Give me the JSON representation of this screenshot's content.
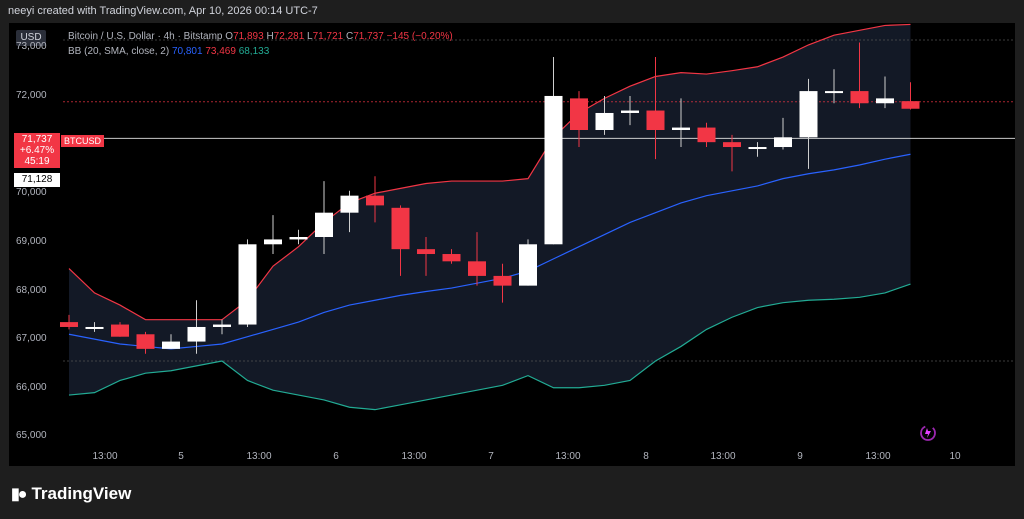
{
  "header": {
    "attribution": "neeyi created with TradingView.com, Apr 10, 2026 00:14 UTC-7"
  },
  "currency_button": "USD",
  "legend": {
    "title": "Bitcoin / U.S. Dollar · 4h · Bitstamp",
    "o_label": "O",
    "o_value": "71,893",
    "h_label": "H",
    "h_value": "72,281",
    "l_label": "L",
    "l_value": "71,721",
    "c_label": "C",
    "c_value": "71,737",
    "change": "−145 (−0.20%)",
    "bb_title": "BB (20, SMA, close, 2)",
    "bb_basis": "70,801",
    "bb_upper": "73,469",
    "bb_lower": "68,133"
  },
  "price_tag": {
    "price": "71,737",
    "change": "+6.47%",
    "countdown": "45:19",
    "symbol": "BTCUSD"
  },
  "crosshair_price": "71,128",
  "brand": "TradingView",
  "colors": {
    "up": "#ffffff",
    "down": "#f23645",
    "upper": "#f23645",
    "basis": "#2962ff",
    "lower": "#22ab94"
  },
  "chart_data": {
    "type": "candlestick",
    "y_ticks": [
      "73,000",
      "72,000",
      "71,000",
      "70,000",
      "69,000",
      "68,000",
      "67,000",
      "66,000",
      "65,000"
    ],
    "x_ticks": [
      "13:00",
      "5",
      "13:00",
      "6",
      "13:00",
      "7",
      "13:00",
      "8",
      "13:00",
      "9",
      "13:00",
      "10"
    ],
    "ylim": [
      64700,
      73500
    ],
    "candles": [
      {
        "o": 67350,
        "h": 67500,
        "l": 67200,
        "c": 67250
      },
      {
        "o": 67250,
        "h": 67350,
        "l": 67150,
        "c": 67250
      },
      {
        "o": 67300,
        "h": 67350,
        "l": 67050,
        "c": 67050
      },
      {
        "o": 67100,
        "h": 67150,
        "l": 66700,
        "c": 66800
      },
      {
        "o": 66800,
        "h": 67100,
        "l": 66800,
        "c": 66950
      },
      {
        "o": 66950,
        "h": 67800,
        "l": 66700,
        "c": 67250
      },
      {
        "o": 67250,
        "h": 67400,
        "l": 67100,
        "c": 67300
      },
      {
        "o": 67300,
        "h": 69050,
        "l": 67250,
        "c": 68950
      },
      {
        "o": 68950,
        "h": 69550,
        "l": 68750,
        "c": 69050
      },
      {
        "o": 69050,
        "h": 69250,
        "l": 68950,
        "c": 69100
      },
      {
        "o": 69100,
        "h": 70250,
        "l": 68750,
        "c": 69600
      },
      {
        "o": 69600,
        "h": 70050,
        "l": 69200,
        "c": 69950
      },
      {
        "o": 69950,
        "h": 70350,
        "l": 69400,
        "c": 69750
      },
      {
        "o": 69700,
        "h": 69750,
        "l": 68300,
        "c": 68850
      },
      {
        "o": 68850,
        "h": 69100,
        "l": 68300,
        "c": 68750
      },
      {
        "o": 68750,
        "h": 68850,
        "l": 68550,
        "c": 68600
      },
      {
        "o": 68600,
        "h": 69200,
        "l": 68100,
        "c": 68300
      },
      {
        "o": 68300,
        "h": 68550,
        "l": 67750,
        "c": 68100
      },
      {
        "o": 68100,
        "h": 69050,
        "l": 68100,
        "c": 68950
      },
      {
        "o": 68950,
        "h": 72800,
        "l": 68950,
        "c": 72000
      },
      {
        "o": 71950,
        "h": 72100,
        "l": 70950,
        "c": 71300
      },
      {
        "o": 71300,
        "h": 72000,
        "l": 71200,
        "c": 71650
      },
      {
        "o": 71650,
        "h": 72000,
        "l": 71400,
        "c": 71700
      },
      {
        "o": 71700,
        "h": 72800,
        "l": 70700,
        "c": 71300
      },
      {
        "o": 71300,
        "h": 71950,
        "l": 70950,
        "c": 71350
      },
      {
        "o": 71350,
        "h": 71450,
        "l": 70950,
        "c": 71050
      },
      {
        "o": 71050,
        "h": 71200,
        "l": 70450,
        "c": 70950
      },
      {
        "o": 70950,
        "h": 71050,
        "l": 70750,
        "c": 70950
      },
      {
        "o": 70950,
        "h": 71550,
        "l": 70900,
        "c": 71150
      },
      {
        "o": 71150,
        "h": 72350,
        "l": 70500,
        "c": 72100
      },
      {
        "o": 72100,
        "h": 72550,
        "l": 71850,
        "c": 72100
      },
      {
        "o": 72100,
        "h": 73100,
        "l": 71750,
        "c": 71850
      },
      {
        "o": 71850,
        "h": 72400,
        "l": 71750,
        "c": 71950
      },
      {
        "o": 71893,
        "h": 72281,
        "l": 71721,
        "c": 71737
      }
    ],
    "bb_upper": [
      68450,
      67950,
      67700,
      67400,
      67400,
      67400,
      67400,
      67800,
      68500,
      68900,
      69400,
      69800,
      70000,
      70100,
      70200,
      70250,
      70250,
      70250,
      70300,
      71150,
      71650,
      71950,
      72200,
      72400,
      72480,
      72450,
      72520,
      72600,
      72800,
      73050,
      73250,
      73350,
      73450,
      73470
    ],
    "bb_basis": [
      67100,
      67000,
      66900,
      66850,
      66800,
      66850,
      66900,
      67050,
      67200,
      67350,
      67550,
      67700,
      67800,
      67900,
      67980,
      68050,
      68150,
      68250,
      68400,
      68650,
      68900,
      69150,
      69400,
      69600,
      69800,
      69950,
      70050,
      70150,
      70300,
      70400,
      70480,
      70580,
      70700,
      70801
    ],
    "bb_lower": [
      65850,
      65900,
      66150,
      66300,
      66350,
      66450,
      66550,
      66150,
      65950,
      65850,
      65750,
      65600,
      65550,
      65650,
      65750,
      65850,
      65950,
      66050,
      66250,
      66000,
      66000,
      66050,
      66150,
      66550,
      66850,
      67200,
      67450,
      67650,
      67750,
      67800,
      67820,
      67860,
      67950,
      68133
    ],
    "levels": [
      73150,
      71880,
      71128,
      66550
    ]
  }
}
